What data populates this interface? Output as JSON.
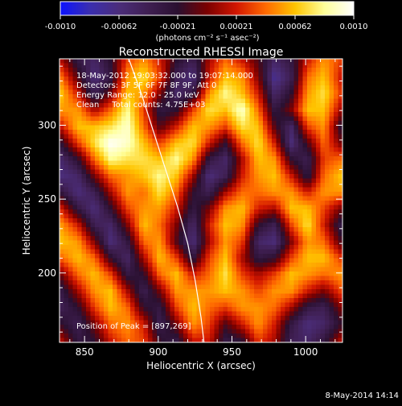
{
  "colorbar": {
    "tick_labels": [
      "-0.0010",
      "-0.00062",
      "-0.00021",
      "0.00021",
      "0.00062",
      "0.0010"
    ],
    "unit_label": "(photons cm⁻² s⁻¹ asec⁻²)",
    "colormap": [
      "#0b12ff",
      "#3a2eb0",
      "#4b2d7a",
      "#3f1f52",
      "#2a1030",
      "#7a0000",
      "#d21600",
      "#ff6a00",
      "#ffc400",
      "#ffff9a",
      "#ffffff"
    ]
  },
  "plot": {
    "title": "Reconstructed RHESSI Image",
    "xlabel": "Heliocentric X (arcsec)",
    "ylabel": "Heliocentric Y (arcsec)",
    "annotations": [
      "18-May-2012 19:03:32.000 to 19:07:14.000",
      "Detectors: 3F 5F 6F 7F 8F 9F, Att 0",
      "Energy Range: 12.0 - 25.0 keV",
      "Clean     Total counts: 4.75E+03"
    ],
    "peak_label": "Position of Peak = [897,269]"
  },
  "footer": {
    "timestamp": "8-May-2014 14:14"
  },
  "chart_data": {
    "type": "heatmap",
    "title": "Reconstructed RHESSI Image",
    "xlabel": "Heliocentric X (arcsec)",
    "ylabel": "Heliocentric Y (arcsec)",
    "xlim": [
      833,
      1025
    ],
    "ylim": [
      153,
      345
    ],
    "x_ticks": [
      850,
      900,
      950,
      1000
    ],
    "y_ticks": [
      200,
      250,
      300
    ],
    "colorbar_range": [
      -0.001,
      0.001
    ],
    "peak_position": [
      897,
      269
    ],
    "limb_curve": [
      [
        880,
        345
      ],
      [
        889,
        320
      ],
      [
        897,
        295
      ],
      [
        905,
        270
      ],
      [
        913,
        245
      ],
      [
        920,
        220
      ],
      [
        925,
        195
      ],
      [
        929,
        170
      ],
      [
        931,
        153
      ]
    ],
    "intensity_grid_rows_top_to_bottom": [
      [
        0.1,
        -0.3,
        -0.5,
        -0.2,
        0.3,
        0.5,
        0.2,
        -0.2,
        -0.4,
        0.1,
        0.4,
        0.2,
        -0.1,
        -0.5,
        -0.3,
        0.2,
        0.5,
        0.3
      ],
      [
        0.4,
        -0.1,
        -0.6,
        -0.3,
        0.5,
        0.7,
        0.3,
        -0.4,
        -0.6,
        0.2,
        0.6,
        0.5,
        0.0,
        -0.7,
        -0.4,
        0.4,
        0.6,
        0.2
      ],
      [
        0.6,
        0.2,
        -0.4,
        0.0,
        0.6,
        0.5,
        0.0,
        -0.5,
        -0.3,
        0.5,
        0.8,
        0.6,
        0.2,
        -0.5,
        -0.2,
        0.5,
        0.7,
        0.3
      ],
      [
        0.5,
        0.5,
        0.1,
        0.4,
        0.8,
        0.3,
        -0.3,
        -0.2,
        0.3,
        0.7,
        0.6,
        0.9,
        0.4,
        -0.3,
        0.0,
        0.6,
        0.6,
        0.1
      ],
      [
        0.2,
        0.6,
        0.6,
        0.7,
        0.9,
        0.4,
        -0.1,
        0.2,
        0.6,
        0.5,
        0.3,
        0.7,
        0.6,
        -0.1,
        -0.5,
        0.3,
        0.5,
        -0.2
      ],
      [
        -0.2,
        0.3,
        0.7,
        1.0,
        0.9,
        0.6,
        0.3,
        0.6,
        0.7,
        0.2,
        -0.2,
        0.4,
        0.7,
        0.2,
        -0.6,
        -0.1,
        0.4,
        0.0
      ],
      [
        -0.5,
        -0.2,
        0.4,
        0.8,
        0.7,
        0.7,
        0.6,
        0.8,
        0.5,
        -0.3,
        -0.5,
        0.1,
        0.6,
        0.5,
        -0.2,
        -0.4,
        0.3,
        0.4
      ],
      [
        -0.6,
        -0.5,
        0.0,
        0.4,
        0.5,
        0.6,
        0.8,
        0.6,
        0.1,
        -0.6,
        -0.4,
        0.2,
        0.5,
        0.6,
        0.2,
        -0.3,
        0.4,
        0.6
      ],
      [
        -0.3,
        -0.6,
        -0.4,
        0.1,
        0.5,
        0.4,
        0.7,
        0.4,
        -0.2,
        -0.4,
        0.1,
        0.4,
        0.4,
        0.5,
        0.5,
        0.2,
        0.5,
        0.5
      ],
      [
        0.2,
        -0.3,
        -0.6,
        -0.2,
        0.3,
        0.5,
        0.5,
        0.2,
        -0.3,
        0.0,
        0.5,
        0.6,
        0.2,
        0.1,
        0.6,
        0.6,
        0.3,
        0.0
      ],
      [
        0.5,
        0.2,
        -0.4,
        -0.5,
        0.0,
        0.6,
        0.4,
        0.0,
        -0.5,
        0.2,
        0.6,
        0.5,
        -0.2,
        -0.4,
        0.3,
        0.7,
        0.2,
        -0.3
      ],
      [
        0.6,
        0.5,
        0.0,
        -0.6,
        -0.3,
        0.4,
        0.5,
        -0.1,
        -0.6,
        0.1,
        0.5,
        0.3,
        -0.5,
        -0.6,
        0.0,
        0.5,
        0.4,
        -0.1
      ],
      [
        0.4,
        0.6,
        0.4,
        -0.2,
        -0.5,
        0.1,
        0.6,
        0.3,
        -0.3,
        0.3,
        0.6,
        0.1,
        -0.3,
        -0.2,
        0.3,
        0.6,
        0.6,
        0.3
      ],
      [
        0.0,
        0.4,
        0.6,
        0.3,
        -0.3,
        -0.2,
        0.4,
        0.6,
        0.2,
        0.4,
        0.7,
        0.3,
        0.1,
        0.3,
        0.6,
        0.5,
        0.4,
        0.5
      ],
      [
        -0.3,
        0.1,
        0.5,
        0.6,
        0.1,
        -0.4,
        0.0,
        0.5,
        0.5,
        0.5,
        0.6,
        0.5,
        0.3,
        0.5,
        0.5,
        0.2,
        0.0,
        0.3
      ],
      [
        -0.4,
        -0.2,
        0.3,
        0.6,
        0.4,
        -0.2,
        -0.3,
        0.3,
        0.6,
        0.4,
        0.3,
        0.5,
        0.5,
        0.4,
        0.1,
        -0.3,
        -0.4,
        0.0
      ],
      [
        -0.2,
        -0.4,
        0.0,
        0.4,
        0.5,
        0.2,
        -0.4,
        0.0,
        0.5,
        0.3,
        -0.1,
        0.2,
        0.5,
        0.2,
        -0.3,
        -0.6,
        -0.5,
        -0.2
      ],
      [
        0.1,
        -0.3,
        -0.2,
        0.2,
        0.4,
        0.3,
        -0.2,
        -0.3,
        0.2,
        0.2,
        -0.3,
        -0.2,
        0.3,
        0.1,
        -0.4,
        -0.5,
        -0.3,
        0.1
      ]
    ]
  }
}
